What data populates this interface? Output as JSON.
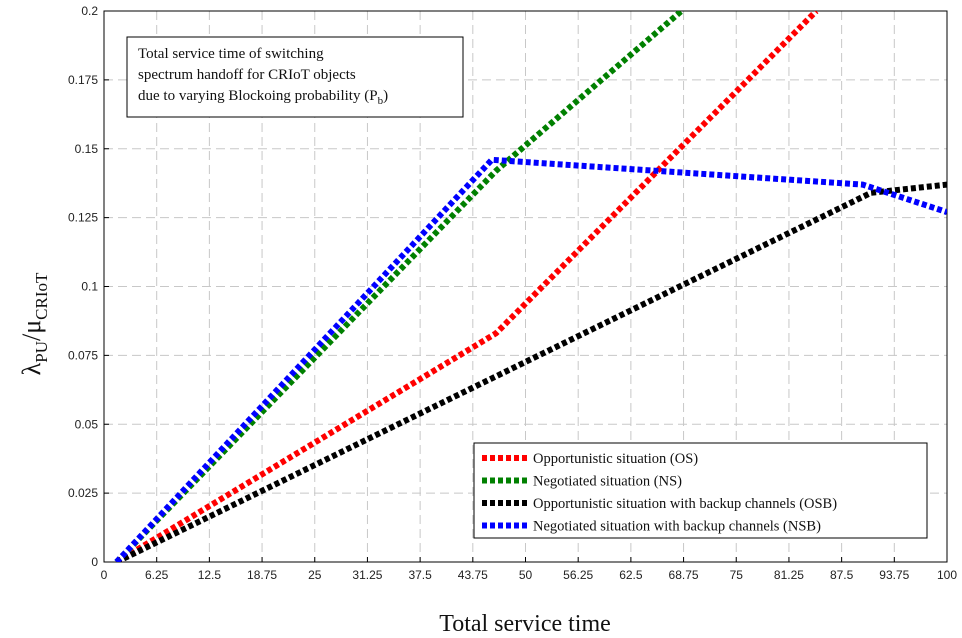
{
  "chart_data": {
    "type": "line",
    "xlabel": "Total service time",
    "ylabel": {
      "lambda": "λ",
      "lambda_sub": "PU",
      "slash": "/",
      "mu": "μ",
      "mu_sub": "CRIoT"
    },
    "xlim": [
      0,
      100
    ],
    "ylim": [
      0,
      0.2
    ],
    "xticks": [
      "0",
      "6.25",
      "12.5",
      "18.75",
      "25",
      "31.25",
      "37.5",
      "43.75",
      "50",
      "56.25",
      "62.5",
      "68.75",
      "75",
      "81.25",
      "87.5",
      "93.75",
      "100"
    ],
    "yticks": [
      "0",
      "0.025",
      "0.05",
      "0.075",
      "0.1",
      "0.125",
      "0.15",
      "0.175",
      "0.2"
    ],
    "grid": true,
    "annotation": {
      "line1": "Total service time of switching",
      "line2": "spectrum handoff for CRIoT objects",
      "line3": "due to varying Blockoing probability (P",
      "line3_sub": "b",
      "line3_end": ")"
    },
    "legend_position": "bottom-right",
    "series": [
      {
        "name": "Opportunistic situation (OS)",
        "color": "#ff0000",
        "x": [
          1.5,
          46.5,
          84.5
        ],
        "y": [
          0,
          0.083,
          0.2
        ]
      },
      {
        "name": "Negotiated situation (NS)",
        "color": "#008000",
        "x": [
          1.5,
          46.5,
          68.5
        ],
        "y": [
          0,
          0.142,
          0.2
        ]
      },
      {
        "name": "Opportunistic situation with backup channels (OSB)",
        "color": "#000000",
        "x": [
          1.5,
          91,
          100
        ],
        "y": [
          0,
          0.134,
          0.137
        ]
      },
      {
        "name": "Negotiated situation with backup channels (NSB)",
        "color": "#0000ff",
        "x": [
          1.5,
          46,
          90,
          100
        ],
        "y": [
          0,
          0.146,
          0.137,
          0.127
        ]
      }
    ]
  }
}
